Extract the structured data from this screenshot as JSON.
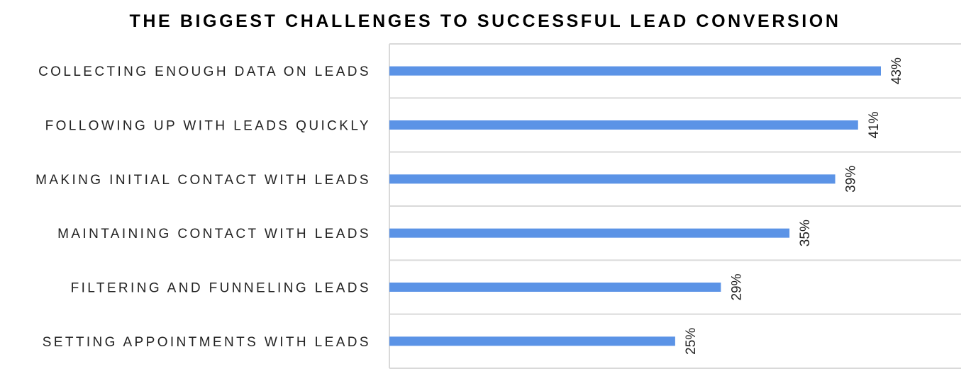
{
  "chart_data": {
    "type": "bar",
    "orientation": "horizontal",
    "title": "THE BIGGEST CHALLENGES TO SUCCESSFUL LEAD CONVERSION",
    "categories": [
      "COLLECTING ENOUGH DATA ON LEADS",
      "FOLLOWING UP WITH LEADS QUICKLY",
      "MAKING INITIAL CONTACT WITH LEADS",
      "MAINTAINING CONTACT WITH LEADS",
      "FILTERING AND FUNNELING LEADS",
      "SETTING APPOINTMENTS WITH LEADS"
    ],
    "values": [
      43,
      41,
      39,
      35,
      29,
      25
    ],
    "value_labels": [
      "43%",
      "41%",
      "39%",
      "35%",
      "29%",
      "25%"
    ],
    "xlim": [
      0,
      50
    ],
    "bar_color": "#5b93e6",
    "grid": true,
    "legend": "none"
  }
}
